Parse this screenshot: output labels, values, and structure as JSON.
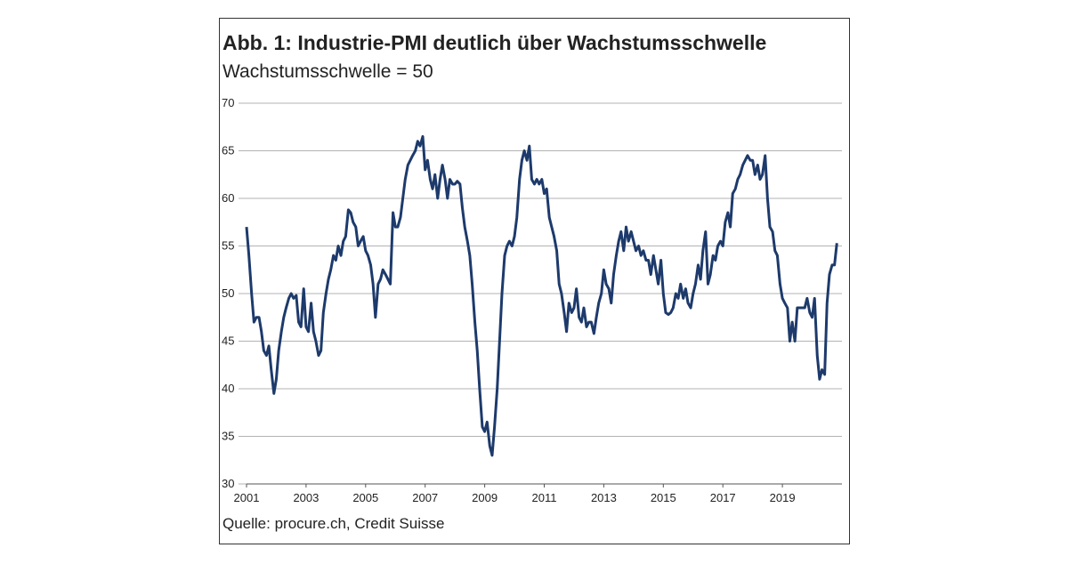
{
  "chart_data": {
    "type": "line",
    "title": "Abb. 1: Industrie-PMI deutlich über Wachstumsschwelle",
    "subtitle": "Wachstumsschwelle = 50",
    "source": "Quelle: procure.ch, Credit Suisse",
    "x": [
      2001.0,
      2001.08,
      2001.17,
      2001.25,
      2001.33,
      2001.42,
      2001.5,
      2001.58,
      2001.67,
      2001.75,
      2001.83,
      2001.92,
      2002.0,
      2002.08,
      2002.17,
      2002.25,
      2002.33,
      2002.42,
      2002.5,
      2002.58,
      2002.67,
      2002.75,
      2002.83,
      2002.92,
      2003.0,
      2003.08,
      2003.17,
      2003.25,
      2003.33,
      2003.42,
      2003.5,
      2003.58,
      2003.67,
      2003.75,
      2003.83,
      2003.92,
      2004.0,
      2004.08,
      2004.17,
      2004.25,
      2004.33,
      2004.42,
      2004.5,
      2004.58,
      2004.67,
      2004.75,
      2004.83,
      2004.92,
      2005.0,
      2005.08,
      2005.17,
      2005.25,
      2005.33,
      2005.42,
      2005.5,
      2005.58,
      2005.67,
      2005.75,
      2005.83,
      2005.92,
      2006.0,
      2006.08,
      2006.17,
      2006.25,
      2006.33,
      2006.42,
      2006.5,
      2006.58,
      2006.67,
      2006.75,
      2006.83,
      2006.92,
      2007.0,
      2007.08,
      2007.17,
      2007.25,
      2007.33,
      2007.42,
      2007.5,
      2007.58,
      2007.67,
      2007.75,
      2007.83,
      2007.92,
      2008.0,
      2008.08,
      2008.17,
      2008.25,
      2008.33,
      2008.42,
      2008.5,
      2008.58,
      2008.67,
      2008.75,
      2008.83,
      2008.92,
      2009.0,
      2009.08,
      2009.17,
      2009.25,
      2009.33,
      2009.42,
      2009.5,
      2009.58,
      2009.67,
      2009.75,
      2009.83,
      2009.92,
      2010.0,
      2010.08,
      2010.17,
      2010.25,
      2010.33,
      2010.42,
      2010.5,
      2010.58,
      2010.67,
      2010.75,
      2010.83,
      2010.92,
      2011.0,
      2011.08,
      2011.17,
      2011.25,
      2011.33,
      2011.42,
      2011.5,
      2011.58,
      2011.67,
      2011.75,
      2011.83,
      2011.92,
      2012.0,
      2012.08,
      2012.17,
      2012.25,
      2012.33,
      2012.42,
      2012.5,
      2012.58,
      2012.67,
      2012.75,
      2012.83,
      2012.92,
      2013.0,
      2013.08,
      2013.17,
      2013.25,
      2013.33,
      2013.42,
      2013.5,
      2013.58,
      2013.67,
      2013.75,
      2013.83,
      2013.92,
      2014.0,
      2014.08,
      2014.17,
      2014.25,
      2014.33,
      2014.42,
      2014.5,
      2014.58,
      2014.67,
      2014.75,
      2014.83,
      2014.92,
      2015.0,
      2015.08,
      2015.17,
      2015.25,
      2015.33,
      2015.42,
      2015.5,
      2015.58,
      2015.67,
      2015.75,
      2015.83,
      2015.92,
      2016.0,
      2016.08,
      2016.17,
      2016.25,
      2016.33,
      2016.42,
      2016.5,
      2016.58,
      2016.67,
      2016.75,
      2016.83,
      2016.92,
      2017.0,
      2017.08,
      2017.17,
      2017.25,
      2017.33,
      2017.42,
      2017.5,
      2017.58,
      2017.67,
      2017.75,
      2017.83,
      2017.92,
      2018.0,
      2018.08,
      2018.17,
      2018.25,
      2018.33,
      2018.42,
      2018.5,
      2018.58,
      2018.67,
      2018.75,
      2018.83,
      2018.92,
      2019.0,
      2019.08,
      2019.17,
      2019.25,
      2019.33,
      2019.42,
      2019.5,
      2019.58,
      2019.67,
      2019.75,
      2019.83,
      2019.92,
      2020.0,
      2020.08,
      2020.17,
      2020.25,
      2020.33,
      2020.42,
      2020.5,
      2020.58,
      2020.67,
      2020.75,
      2020.83
    ],
    "series": [
      {
        "color": "#1d3a6b",
        "values": [
          57,
          54,
          50,
          47,
          47.5,
          47.5,
          46,
          44,
          43.5,
          44.5,
          42,
          39.5,
          41,
          44,
          46,
          47.5,
          48.5,
          49.5,
          50,
          49.5,
          49.8,
          47,
          46.5,
          50.5,
          46.5,
          46,
          49,
          46,
          45,
          43.5,
          44,
          48,
          50,
          51.5,
          52.5,
          54,
          53.5,
          55,
          54,
          55.5,
          56,
          58.8,
          58.5,
          57.5,
          57,
          55,
          55.5,
          56,
          54.5,
          54,
          53,
          51,
          47.5,
          51,
          51.5,
          52.5,
          52,
          51.5,
          51,
          58.5,
          57,
          57,
          58,
          60,
          62,
          63.5,
          64,
          64.5,
          65,
          66,
          65.5,
          66.5,
          63,
          64,
          62,
          61,
          62.5,
          60,
          62,
          63.5,
          62,
          60,
          62,
          61.5,
          61.5,
          61.8,
          61.5,
          59,
          57,
          55.5,
          54,
          51,
          47,
          44,
          40,
          36,
          35.5,
          36.5,
          34,
          33,
          36,
          40,
          45,
          50,
          54,
          55,
          55.5,
          55,
          56,
          58,
          62,
          64,
          65,
          64,
          65.5,
          62,
          61.5,
          62,
          61.5,
          62,
          60.5,
          61,
          58,
          57,
          56,
          54.5,
          51,
          50,
          48,
          46,
          49,
          48,
          48.5,
          50.5,
          47.5,
          47,
          48.5,
          46.5,
          47,
          47,
          45.8,
          47.5,
          49,
          50,
          52.5,
          51,
          50.5,
          49,
          52,
          54,
          55.5,
          56.5,
          54.5,
          57,
          55.5,
          56.5,
          55.5,
          54.5,
          55,
          54,
          54.5,
          53.5,
          53.5,
          52,
          54,
          52.5,
          51,
          53.5,
          50,
          48,
          47.8,
          48,
          48.5,
          50,
          49.5,
          51,
          49.5,
          50.5,
          49,
          48.5,
          50,
          51,
          53,
          51.5,
          54.5,
          56.5,
          51,
          52,
          54,
          53.5,
          55,
          55.5,
          55,
          57.5,
          58.5,
          57,
          60.5,
          61,
          62,
          62.5,
          63.5,
          64,
          64.5,
          64,
          64,
          62.5,
          63.5,
          62,
          62.5,
          64.5,
          60,
          57,
          56.5,
          54.5,
          54,
          51,
          49.5,
          49,
          48.5,
          45,
          47,
          45,
          48.5,
          48.5,
          48.5,
          48.5,
          49.5,
          48,
          47.5,
          49.5,
          43.5,
          41,
          42,
          41.5,
          49,
          52,
          53,
          53,
          55.3
        ]
      }
    ],
    "xlim": [
      2001,
      2021
    ],
    "xticks": [
      2001,
      2003,
      2005,
      2007,
      2009,
      2011,
      2013,
      2015,
      2017,
      2019
    ],
    "ylim": [
      30,
      70
    ],
    "yticks": [
      30,
      35,
      40,
      45,
      50,
      55,
      60,
      65,
      70
    ],
    "grid": true
  }
}
